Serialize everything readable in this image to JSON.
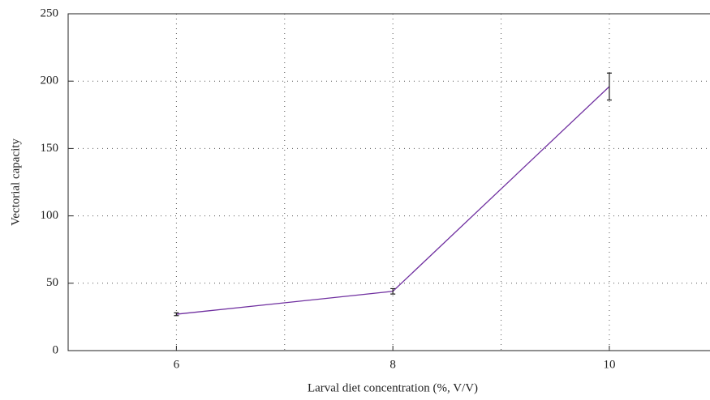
{
  "chart_data": {
    "type": "line",
    "xlabel": "Larval diet concentration (%, V/V)",
    "ylabel": "Vectorial capacity",
    "x": [
      6,
      8,
      10
    ],
    "series": [
      {
        "name": "Vectorial capacity",
        "color": "#7030a0",
        "values": [
          27,
          44,
          196
        ],
        "errors": [
          1,
          2,
          10
        ]
      }
    ],
    "xlim": [
      5,
      10.93
    ],
    "xticks": [
      6,
      8,
      10
    ],
    "xgrid_minor": [
      7,
      9
    ],
    "ylim": [
      0,
      250
    ],
    "yticks": [
      0,
      50,
      100,
      150,
      200,
      250
    ],
    "grid": true
  }
}
